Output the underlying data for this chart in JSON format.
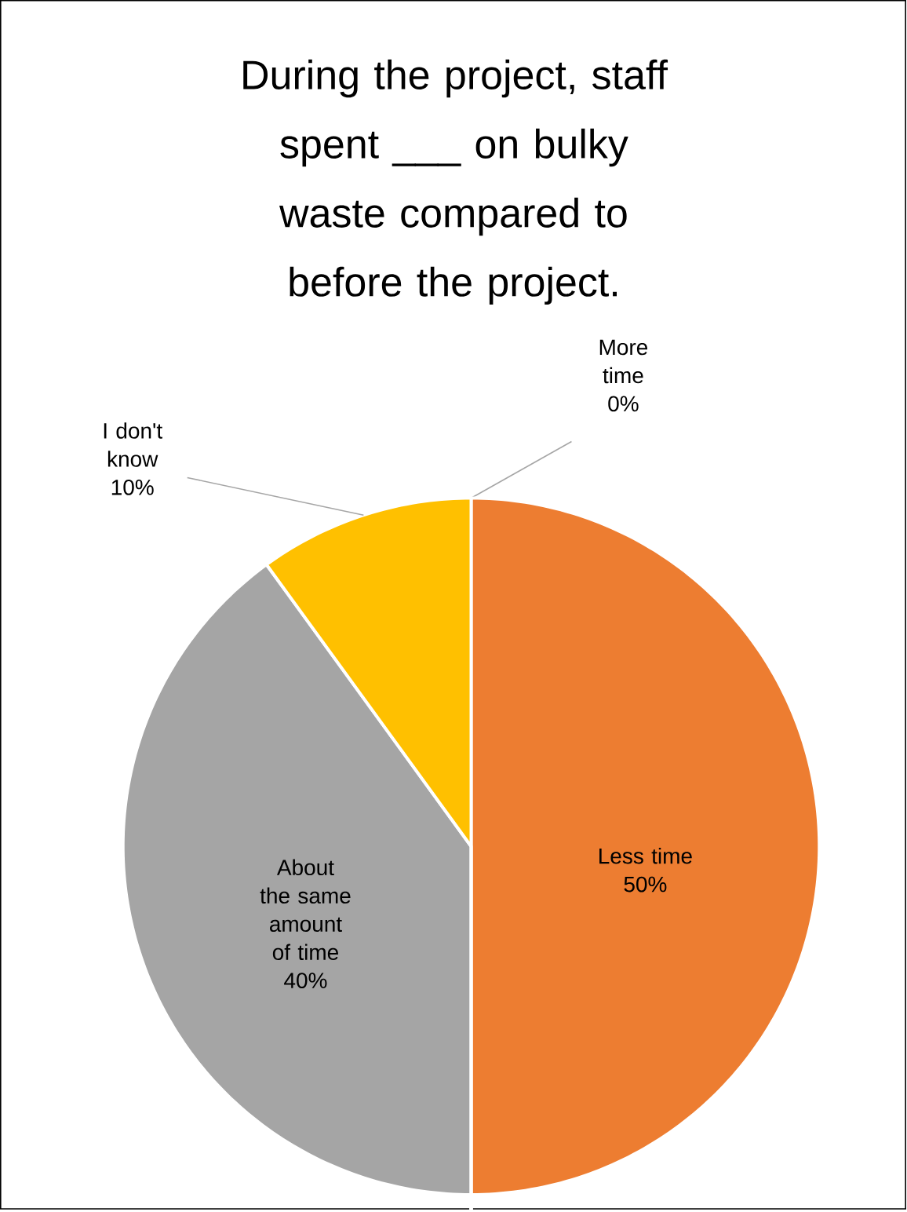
{
  "chart_data": {
    "type": "pie",
    "title": "During the project, staff spent ___ on bulky waste compared to before the project.",
    "categories": [
      "More time",
      "Less time",
      "About the same amount of time",
      "I don't know"
    ],
    "values": [
      0,
      50,
      40,
      10
    ],
    "colors": [
      "#4472c4",
      "#ed7d31",
      "#a5a5a5",
      "#ffc000"
    ],
    "value_labels": [
      "0%",
      "50%",
      "40%",
      "10%"
    ]
  }
}
